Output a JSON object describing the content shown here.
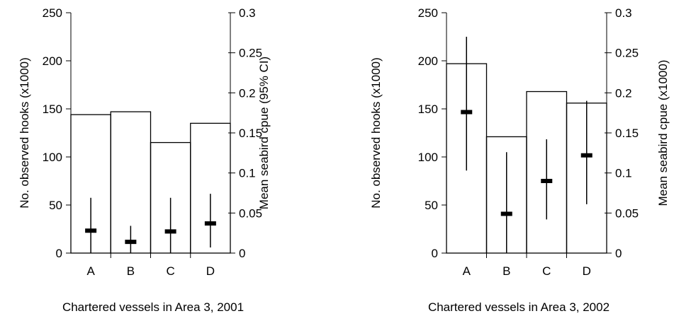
{
  "chart_data": [
    {
      "type": "bar",
      "caption": "Chartered vessels in Area 3, 2001",
      "ylabel": "No. observed hooks (x1000)",
      "y2label": "Mean seabird cpue (95% CI)",
      "categories": [
        "A",
        "B",
        "C",
        "D"
      ],
      "ylim": [
        0,
        250
      ],
      "yticks": [
        "0",
        "50",
        "100",
        "150",
        "200",
        "250"
      ],
      "y2lim": [
        0,
        0.3
      ],
      "y2ticks": [
        "0",
        "0.05",
        "0.1",
        "0.15",
        "0.2",
        "0.25",
        "0.3"
      ],
      "series": [
        {
          "name": "",
          "kind": "bar",
          "axis": "left",
          "values": [
            144,
            147,
            115,
            135
          ]
        },
        {
          "name": "",
          "kind": "point-ci",
          "axis": "right",
          "values": [
            0.028,
            0.014,
            0.027,
            0.037
          ],
          "ci_low": [
            0,
            0,
            0,
            0.007
          ],
          "ci_high": [
            0.069,
            0.034,
            0.069,
            0.074
          ]
        }
      ],
      "grid": false
    },
    {
      "type": "bar",
      "caption": "Chartered vessels in Area 3, 2002",
      "ylabel": "No. observed hooks (x1000)",
      "y2label": "Mean seabird cpue (x1000)",
      "categories": [
        "A",
        "B",
        "C",
        "D"
      ],
      "ylim": [
        0,
        250
      ],
      "yticks": [
        "0",
        "50",
        "100",
        "150",
        "200",
        "250"
      ],
      "y2lim": [
        0,
        0.3
      ],
      "y2ticks": [
        "0",
        "0.05",
        "0.1",
        "0.15",
        "0.2",
        "0.25",
        "0.3"
      ],
      "series": [
        {
          "name": "",
          "kind": "bar",
          "axis": "left",
          "values": [
            197,
            121,
            168,
            156
          ]
        },
        {
          "name": "",
          "kind": "point-ci",
          "axis": "right",
          "values": [
            0.176,
            0.049,
            0.09,
            0.122
          ],
          "ci_low": [
            0.103,
            0,
            0.042,
            0.061
          ],
          "ci_high": [
            0.27,
            0.126,
            0.142,
            0.19
          ]
        }
      ],
      "grid": false
    }
  ]
}
